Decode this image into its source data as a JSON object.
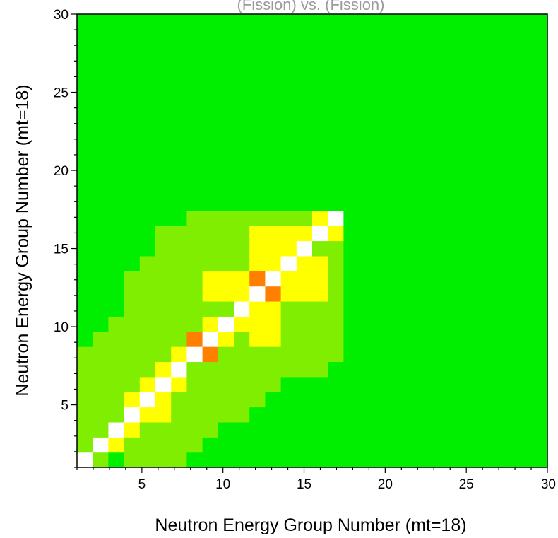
{
  "chart_data": {
    "type": "heatmap",
    "title": "(Fission) vs. (Fission)",
    "xlabel": "Neutron Energy Group Number (mt=18)",
    "ylabel": "Neutron Energy Group Number (mt=18)",
    "xlim": [
      1,
      30
    ],
    "ylim": [
      1,
      30
    ],
    "x_ticks": [
      "5",
      "10",
      "15",
      "20",
      "25",
      "30"
    ],
    "y_ticks": [
      "5",
      "10",
      "15",
      "20",
      "25",
      "30"
    ],
    "grid": false,
    "legend": "none",
    "level_colors": {
      "0": "#00ee00",
      "1": "#80ee00",
      "2": "#ffff00",
      "3": "#ff8000",
      "4": "#ffffff"
    },
    "background_level": 0,
    "cells_note_rows_from_group_1_upward": [
      "4000011111111111111111111111111",
      "1401111111111111111111111111111",
      "0242111111111111111111111111111",
      "0024221111111111111111111111111",
      "1124221111111111111111111111111",
      "1122422111111111111111111111111",
      "1112242211111111111111111111111",
      "1111224111111111111111111111111",
      "1111124311111111111111111111111",
      "1111111111111111111111111111111"
    ],
    "matrix": []
  }
}
